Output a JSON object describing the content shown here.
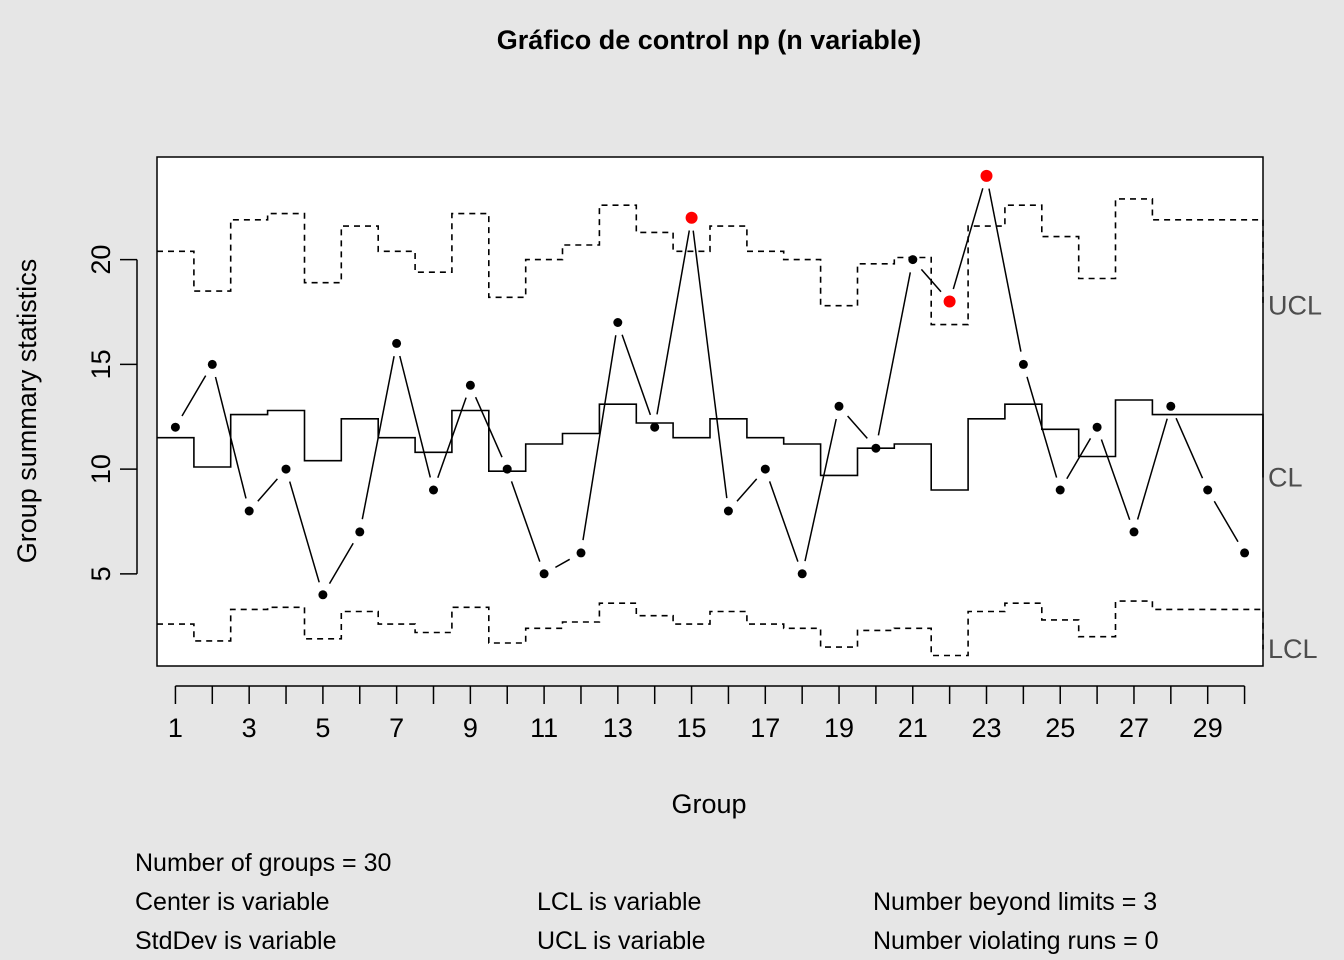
{
  "chart_data": {
    "type": "line",
    "title": "Gráfico de control np (n variable)",
    "xlabel": "Group",
    "ylabel": "Group summary statistics",
    "xlim": [
      0.5,
      30.5
    ],
    "ylim": [
      0.6,
      24.9
    ],
    "x_ticks": [
      1,
      2,
      3,
      4,
      5,
      6,
      7,
      8,
      9,
      10,
      11,
      12,
      13,
      14,
      15,
      16,
      17,
      18,
      19,
      20,
      21,
      22,
      23,
      24,
      25,
      26,
      27,
      28,
      29,
      30
    ],
    "x_tick_labels": [
      "1",
      "3",
      "5",
      "7",
      "9",
      "11",
      "13",
      "15",
      "17",
      "19",
      "21",
      "23",
      "25",
      "27",
      "29"
    ],
    "x_tick_label_values": [
      1,
      3,
      5,
      7,
      9,
      11,
      13,
      15,
      17,
      19,
      21,
      23,
      25,
      27,
      29
    ],
    "y_ticks": [
      5,
      10,
      15,
      20
    ],
    "y_tick_labels": [
      "5",
      "10",
      "15",
      "20"
    ],
    "groups": [
      1,
      2,
      3,
      4,
      5,
      6,
      7,
      8,
      9,
      10,
      11,
      12,
      13,
      14,
      15,
      16,
      17,
      18,
      19,
      20,
      21,
      22,
      23,
      24,
      25,
      26,
      27,
      28,
      29,
      30
    ],
    "values": [
      12,
      15,
      8,
      10,
      4,
      7,
      16,
      9,
      14,
      10,
      5,
      6,
      17,
      12,
      22,
      8,
      10,
      5,
      13,
      11,
      20,
      18,
      24,
      15,
      9,
      12,
      7,
      13,
      9,
      6
    ],
    "center": [
      11.5,
      10.1,
      12.6,
      12.8,
      10.4,
      12.4,
      11.5,
      10.8,
      12.8,
      9.9,
      11.2,
      11.7,
      13.1,
      12.2,
      11.5,
      12.4,
      11.5,
      11.2,
      9.7,
      11.0,
      11.2,
      9.0,
      12.4,
      13.1,
      11.9,
      10.6,
      13.3,
      12.6,
      12.6,
      12.6
    ],
    "ucl": [
      20.4,
      18.5,
      21.9,
      22.2,
      18.9,
      21.6,
      20.4,
      19.4,
      22.2,
      18.2,
      20.0,
      20.7,
      22.6,
      21.3,
      20.4,
      21.6,
      20.4,
      20.0,
      17.8,
      19.8,
      20.1,
      16.9,
      21.6,
      22.6,
      21.1,
      19.1,
      22.9,
      21.9,
      21.9,
      21.9
    ],
    "lcl": [
      2.6,
      1.8,
      3.3,
      3.4,
      1.9,
      3.2,
      2.6,
      2.2,
      3.4,
      1.7,
      2.4,
      2.7,
      3.6,
      3.0,
      2.6,
      3.2,
      2.6,
      2.4,
      1.5,
      2.3,
      2.4,
      1.1,
      3.2,
      3.6,
      2.8,
      2.0,
      3.7,
      3.3,
      3.3,
      3.3
    ],
    "ucl_label_value": 17.8,
    "cl_label_value": 9.6,
    "lcl_label_value": 1.4,
    "violation_groups": [
      15,
      22,
      23
    ],
    "line_labels": {
      "ucl": "UCL",
      "cl": "CL",
      "lcl": "LCL"
    },
    "colors": {
      "background": "#e6e6e6",
      "plot_bg": "#ffffff",
      "points": "#000000",
      "violation": "#ff0000",
      "limit_label": "#4d4d4d"
    }
  },
  "stats": {
    "number_of_groups": "Number of groups = 30",
    "center": "Center is variable",
    "stddev": "StdDev is variable",
    "lcl": "LCL is variable",
    "ucl": "UCL is variable",
    "beyond_limits": "Number beyond limits = 3",
    "violating_runs": "Number violating runs = 0"
  }
}
